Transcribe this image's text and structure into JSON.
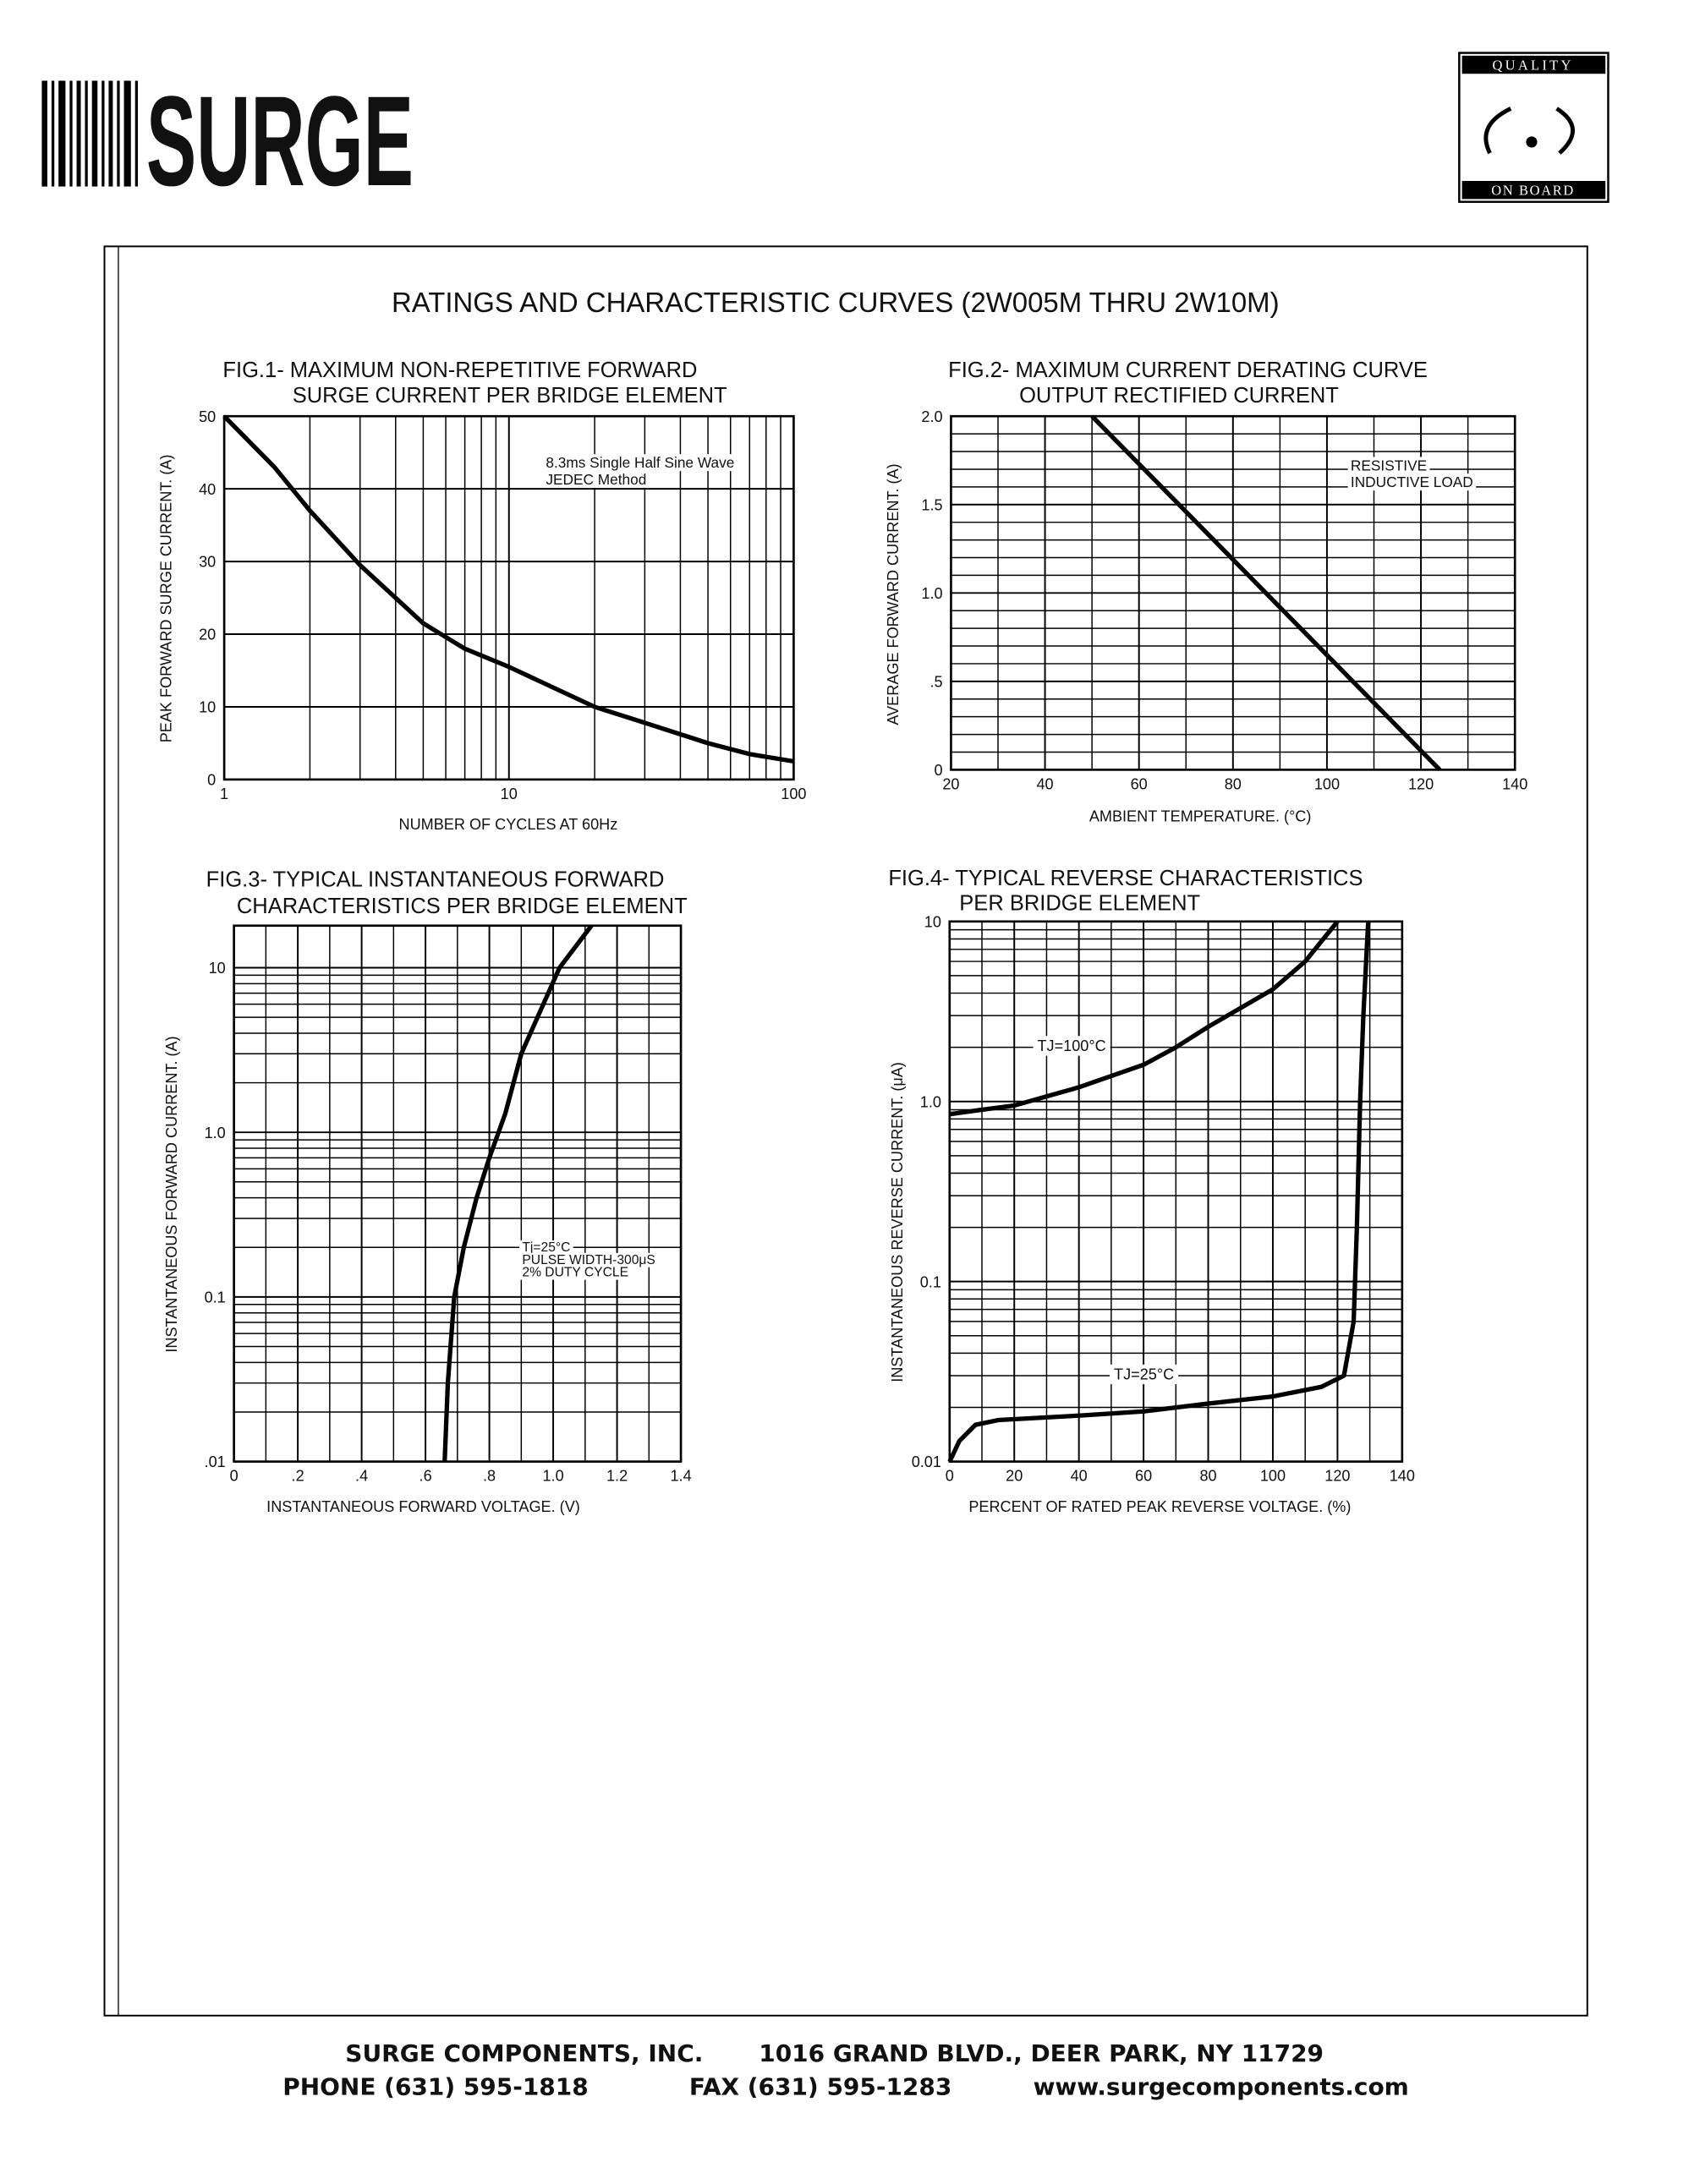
{
  "logo": "SURGE",
  "badge": {
    "top": "QUALITY",
    "bottom": "ON BOARD"
  },
  "heading": "RATINGS AND CHARACTERISTIC CURVES (2W005M THRU 2W10M)",
  "chart_data": [
    {
      "type": "line",
      "title": "FIG.1- MAXIMUM NON-REPETITIVE FORWARD",
      "subtitle": "SURGE CURRENT PER BRIDGE ELEMENT",
      "x_label": "NUMBER OF CYCLES AT 60Hz",
      "y_label": "PEAK FORWARD SURGE CURRENT. (A)",
      "x_scale": "log",
      "y_scale": "linear",
      "grid": true,
      "xlim": [
        1,
        100
      ],
      "xticks": [
        1,
        10,
        100
      ],
      "ylim": [
        0,
        50
      ],
      "yticks": [
        0,
        10,
        20,
        30,
        40,
        50
      ],
      "annotations": [
        "8.3ms Single Half Sine Wave",
        "JEDEC Method"
      ],
      "series": [
        {
          "color": "#000000",
          "x": [
            1,
            1.5,
            2,
            3,
            5,
            7,
            10,
            20,
            30,
            50,
            70,
            100
          ],
          "values": [
            50,
            43,
            37,
            29.5,
            21.5,
            18,
            15.5,
            10,
            7.8,
            5,
            3.5,
            2.5
          ]
        }
      ]
    },
    {
      "type": "line",
      "title": "FIG.2- MAXIMUM CURRENT DERATING CURVE",
      "subtitle": "OUTPUT RECTIFIED CURRENT",
      "x_label": "AMBIENT TEMPERATURE. (°C)",
      "y_label": "AVERAGE FORWARD CURRENT. (A)",
      "x_scale": "linear",
      "y_scale": "linear",
      "grid": true,
      "xlim": [
        20,
        140
      ],
      "xticks": [
        20,
        40,
        60,
        80,
        100,
        120,
        140
      ],
      "ylim": [
        0,
        2
      ],
      "yticks": [
        0,
        {
          "value": 0.5,
          "label": ".5"
        },
        {
          "value": 1,
          "label": "1.0"
        },
        1.5,
        {
          "value": 2,
          "label": "2.0"
        }
      ],
      "annotations": [
        "RESISTIVE",
        "INDUCTIVE LOAD"
      ],
      "series": [
        {
          "color": "#000000",
          "x": [
            50,
            124
          ],
          "values": [
            2,
            0
          ]
        }
      ]
    },
    {
      "type": "line",
      "title": "FIG.3- TYPICAL INSTANTANEOUS FORWARD",
      "subtitle": "CHARACTERISTICS PER BRIDGE ELEMENT",
      "x_label": "INSTANTANEOUS FORWARD VOLTAGE. (V)",
      "y_label": "INSTANTANEOUS FORWARD CURRENT. (A)",
      "x_scale": "linear",
      "y_scale": "log",
      "grid": true,
      "xlim": [
        0,
        1.4
      ],
      "xticks": [
        0,
        {
          "value": 0.2,
          "label": ".2"
        },
        {
          "value": 0.4,
          "label": ".4"
        },
        {
          "value": 0.6,
          "label": ".6"
        },
        {
          "value": 0.8,
          "label": ".8"
        },
        {
          "value": 1,
          "label": "1.0"
        },
        1.2,
        1.4
      ],
      "ylim": [
        0.01,
        18
      ],
      "yticks": [
        {
          "value": 0.01,
          "label": ".01"
        },
        0.1,
        {
          "value": 1,
          "label": "1.0"
        },
        10
      ],
      "annotations": [
        "Tj=25°C",
        "PULSE WIDTH-300μS",
        "2% DUTY CYCLE"
      ],
      "series": [
        {
          "color": "#000000",
          "x": [
            0.66,
            0.67,
            0.69,
            0.72,
            0.76,
            0.8,
            0.85,
            0.9,
            1.02,
            1.12
          ],
          "values": [
            0.01,
            0.03,
            0.1,
            0.2,
            0.4,
            0.7,
            1.3,
            3,
            10,
            18
          ]
        }
      ]
    },
    {
      "type": "line",
      "title": "FIG.4- TYPICAL REVERSE CHARACTERISTICS",
      "subtitle": "PER BRIDGE ELEMENT",
      "x_label": "PERCENT OF RATED PEAK REVERSE VOLTAGE. (%)",
      "y_label": "INSTANTANEOUS REVERSE CURRENT. (μA)",
      "x_scale": "linear",
      "y_scale": "log",
      "grid": true,
      "xlim": [
        0,
        140
      ],
      "xticks": [
        0,
        20,
        40,
        60,
        80,
        100,
        120,
        140
      ],
      "ylim": [
        0.01,
        10
      ],
      "yticks": [
        0.01,
        0.1,
        {
          "value": 1,
          "label": "1.0"
        },
        10
      ],
      "series": [
        {
          "name": "TJ=100°C",
          "color": "#000000",
          "x": [
            0,
            10,
            20,
            40,
            60,
            70,
            80,
            100,
            110,
            120
          ],
          "values": [
            0.85,
            0.9,
            0.95,
            1.2,
            1.6,
            2,
            2.6,
            4.2,
            6,
            10
          ]
        },
        {
          "name": "TJ=25°C",
          "color": "#000000",
          "x": [
            0,
            3,
            8,
            15,
            40,
            60,
            80,
            100,
            115,
            122,
            125,
            126,
            127,
            128,
            129.5
          ],
          "values": [
            0.01,
            0.013,
            0.016,
            0.017,
            0.018,
            0.019,
            0.021,
            0.023,
            0.026,
            0.03,
            0.06,
            0.2,
            1,
            3,
            10
          ]
        }
      ]
    }
  ],
  "footer": {
    "company": "SURGE COMPONENTS, INC.",
    "address": "1016 GRAND BLVD., DEER PARK, NY  11729",
    "phone": "PHONE (631) 595-1818",
    "fax": "FAX  (631) 595-1283",
    "web": "www.surgecomponents.com"
  }
}
